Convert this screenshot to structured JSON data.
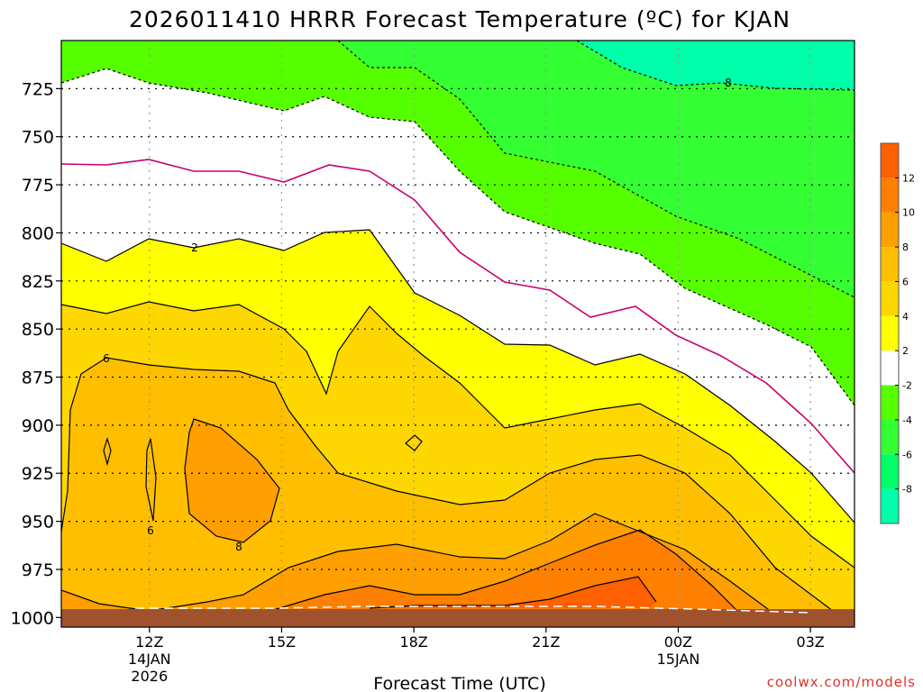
{
  "colors": {
    "band_lt_-2": "#55ff00",
    "band_-2_2": "#ffffff",
    "band_2_4": "#ffff00",
    "band_4_6": "#ffd700",
    "band_6_8": "#ffbf00",
    "band_8_10": "#ff9f00",
    "band_10_12": "#ff7f00",
    "band_gt_12": "#ff6000",
    "ground": "#a0522d",
    "zero_line": "#c8006e"
  },
  "chart_data": {
    "type": "heatmap",
    "title": "2026011410 HRRR Forecast Temperature (ºC) for KJAN",
    "xlabel": "Forecast Time (UTC)",
    "ylabel": "",
    "x_ticks": [
      {
        "label": "12Z",
        "sub": [
          "14JAN",
          "2026"
        ]
      },
      {
        "label": "15Z",
        "sub": []
      },
      {
        "label": "18Z",
        "sub": []
      },
      {
        "label": "21Z",
        "sub": []
      },
      {
        "label": "00Z",
        "sub": [
          "15JAN"
        ]
      },
      {
        "label": "03Z",
        "sub": []
      }
    ],
    "x_hours": [
      12,
      15,
      18,
      21,
      24,
      27
    ],
    "x_range": [
      10,
      28
    ],
    "y_ticks": [
      725,
      750,
      775,
      800,
      825,
      850,
      875,
      900,
      925,
      950,
      975,
      1000
    ],
    "y_range_hPa": [
      700,
      1005
    ],
    "grid": true,
    "colorbar": {
      "labels": [
        "12",
        "10",
        "8",
        "6",
        "4",
        "2",
        "-2",
        "-4",
        "-6",
        "-8"
      ],
      "colors": [
        "#ff6000",
        "#ff7f00",
        "#ff9f00",
        "#ffbf00",
        "#ffd700",
        "#ffff00",
        "#ffffff",
        "#55ff00",
        "#33ff33",
        "#00ff66",
        "#00ffaa"
      ]
    },
    "contour_labels": [
      "2",
      "6",
      "6",
      "8",
      "8"
    ],
    "series": []
  },
  "footer": {
    "credit": "coolwx.com/models"
  }
}
